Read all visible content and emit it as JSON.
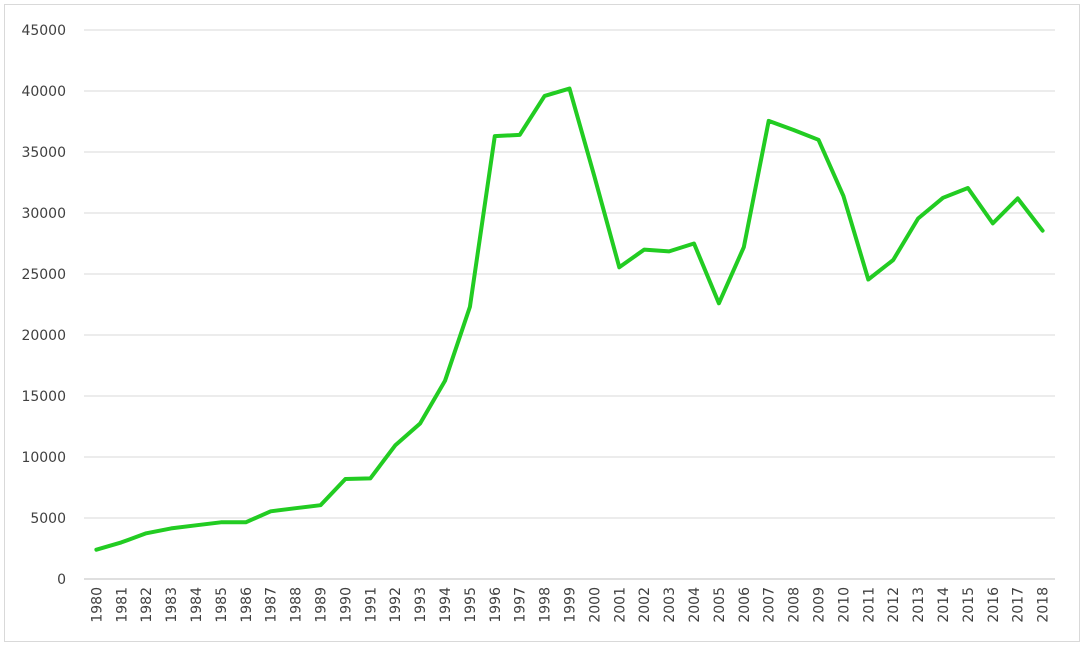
{
  "chart_data": {
    "type": "line",
    "title": "",
    "xlabel": "",
    "ylabel": "",
    "ylim": [
      0,
      45000
    ],
    "yticks": [
      0,
      5000,
      10000,
      15000,
      20000,
      25000,
      30000,
      35000,
      40000,
      45000
    ],
    "grid": true,
    "legend": "none",
    "x": [
      "1980",
      "1981",
      "1982",
      "1983",
      "1984",
      "1985",
      "1986",
      "1987",
      "1988",
      "1989",
      "1990",
      "1991",
      "1992",
      "1993",
      "1994",
      "1995",
      "1996",
      "1997",
      "1998",
      "1999",
      "2000",
      "2001",
      "2002",
      "2003",
      "2004",
      "2005",
      "2006",
      "2007",
      "2008",
      "2009",
      "2010",
      "2011",
      "2012",
      "2013",
      "2014",
      "2015",
      "2016",
      "2017",
      "2018"
    ],
    "series": [
      {
        "color": "#22cc22",
        "values": [
          2400,
          3000,
          3750,
          4150,
          4400,
          4650,
          4650,
          5550,
          5800,
          6050,
          8200,
          8250,
          10950,
          12750,
          16250,
          22300,
          36300,
          36400,
          39600,
          40200,
          33000,
          25550,
          27000,
          26850,
          27500,
          22600,
          27200,
          37550,
          36800,
          36000,
          31400,
          24550,
          26150,
          29550,
          31250,
          32050,
          29150,
          31200,
          28550
        ]
      }
    ]
  }
}
